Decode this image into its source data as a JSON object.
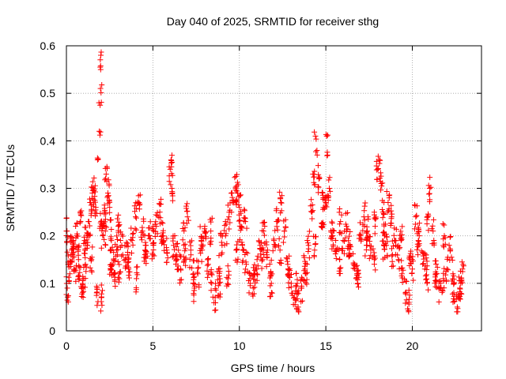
{
  "chart_data": {
    "type": "scatter",
    "title": "Day 040 of 2025, SRMTID for receiver sthg",
    "xlabel": "GPS time / hours",
    "ylabel": "SRMTID / TECUs",
    "xlim": [
      0,
      24
    ],
    "ylim": [
      0,
      0.6
    ],
    "xticks": [
      0,
      5,
      10,
      15,
      20
    ],
    "xtick_labels": [
      "0",
      "5",
      "10",
      "15",
      "20"
    ],
    "yticks": [
      0,
      0.1,
      0.2,
      0.3,
      0.4,
      0.5,
      0.6
    ],
    "ytick_labels": [
      "0",
      "0.1",
      "0.2",
      "0.3",
      "0.4",
      "0.5",
      "0.6"
    ],
    "grid": true,
    "marker": "+",
    "series": [
      {
        "name": "SRMTID",
        "color": "#ff0000",
        "x": [
          0.0,
          0.1,
          0.2,
          0.3,
          0.4,
          0.5,
          0.6,
          0.7,
          0.8,
          0.9,
          1.0,
          1.1,
          1.2,
          1.3,
          1.4,
          1.5,
          1.6,
          1.7,
          1.8,
          1.9,
          1.95,
          1.97,
          1.98,
          1.99,
          2.0,
          2.02,
          2.1,
          2.2,
          2.3,
          2.4,
          2.5,
          2.6,
          2.7,
          2.8,
          2.9,
          3.0,
          3.2,
          3.4,
          3.6,
          3.8,
          4.0,
          4.2,
          4.4,
          4.6,
          4.8,
          5.0,
          5.2,
          5.4,
          5.6,
          5.8,
          6.0,
          6.05,
          6.1,
          6.2,
          6.4,
          6.6,
          6.8,
          7.0,
          7.2,
          7.4,
          7.6,
          7.8,
          8.0,
          8.2,
          8.4,
          8.6,
          8.8,
          9.0,
          9.2,
          9.4,
          9.6,
          9.8,
          9.9,
          10.0,
          10.1,
          10.2,
          10.4,
          10.6,
          10.8,
          11.0,
          11.2,
          11.4,
          11.6,
          11.8,
          12.0,
          12.2,
          12.4,
          12.6,
          12.8,
          13.0,
          13.2,
          13.4,
          13.6,
          13.8,
          14.0,
          14.2,
          14.3,
          14.4,
          14.5,
          14.6,
          14.8,
          15.0,
          15.05,
          15.1,
          15.2,
          15.4,
          15.6,
          15.8,
          16.0,
          16.2,
          16.4,
          16.6,
          16.8,
          17.0,
          17.2,
          17.4,
          17.6,
          17.8,
          18.0,
          18.1,
          18.2,
          18.3,
          18.4,
          18.5,
          18.6,
          18.8,
          19.0,
          19.2,
          19.4,
          19.6,
          19.8,
          20.0,
          20.2,
          20.4,
          20.6,
          20.8,
          20.9,
          21.0,
          21.2,
          21.4,
          21.6,
          21.8,
          22.0,
          22.2,
          22.4,
          22.6,
          22.8,
          22.9,
          0.05,
          0.35,
          0.75,
          1.05,
          1.45,
          1.75,
          2.25,
          2.55,
          3.05,
          3.55,
          4.05,
          4.55,
          5.05,
          5.55,
          6.35,
          6.85,
          7.35,
          7.85,
          8.35,
          8.85,
          9.35,
          9.85,
          10.35,
          10.85,
          11.35,
          11.85,
          12.35,
          12.85,
          13.35,
          13.85,
          14.35,
          14.85,
          15.35,
          15.85,
          16.35,
          16.85,
          17.35,
          17.85,
          18.35,
          18.85,
          19.35,
          19.85,
          20.35,
          20.85,
          21.35,
          21.85,
          22.35,
          22.75
        ],
        "y": [
          0.21,
          0.14,
          0.12,
          0.17,
          0.19,
          0.13,
          0.2,
          0.15,
          0.25,
          0.09,
          0.11,
          0.14,
          0.18,
          0.23,
          0.27,
          0.29,
          0.3,
          0.26,
          0.36,
          0.42,
          0.475,
          0.51,
          0.55,
          0.58,
          0.23,
          0.07,
          0.2,
          0.25,
          0.33,
          0.29,
          0.26,
          0.19,
          0.14,
          0.12,
          0.17,
          0.22,
          0.18,
          0.15,
          0.13,
          0.19,
          0.24,
          0.27,
          0.21,
          0.18,
          0.2,
          0.16,
          0.22,
          0.25,
          0.19,
          0.17,
          0.34,
          0.36,
          0.3,
          0.18,
          0.15,
          0.13,
          0.21,
          0.24,
          0.16,
          0.09,
          0.12,
          0.19,
          0.22,
          0.14,
          0.1,
          0.07,
          0.13,
          0.18,
          0.2,
          0.24,
          0.27,
          0.3,
          0.29,
          0.26,
          0.22,
          0.17,
          0.14,
          0.11,
          0.09,
          0.13,
          0.18,
          0.21,
          0.16,
          0.12,
          0.19,
          0.23,
          0.27,
          0.21,
          0.14,
          0.1,
          0.07,
          0.05,
          0.09,
          0.13,
          0.18,
          0.25,
          0.33,
          0.41,
          0.37,
          0.32,
          0.22,
          0.27,
          0.41,
          0.37,
          0.3,
          0.2,
          0.17,
          0.15,
          0.19,
          0.22,
          0.18,
          0.14,
          0.12,
          0.2,
          0.24,
          0.21,
          0.17,
          0.15,
          0.34,
          0.36,
          0.31,
          0.25,
          0.2,
          0.18,
          0.27,
          0.24,
          0.19,
          0.15,
          0.12,
          0.08,
          0.06,
          0.13,
          0.24,
          0.2,
          0.14,
          0.16,
          0.24,
          0.3,
          0.21,
          0.12,
          0.09,
          0.11,
          0.13,
          0.17,
          0.08,
          0.05,
          0.1,
          0.13,
          0.09,
          0.16,
          0.11,
          0.19,
          0.15,
          0.08,
          0.21,
          0.13,
          0.12,
          0.16,
          0.11,
          0.17,
          0.21,
          0.2,
          0.16,
          0.15,
          0.12,
          0.17,
          0.21,
          0.1,
          0.11,
          0.17,
          0.23,
          0.12,
          0.15,
          0.1,
          0.17,
          0.12,
          0.1,
          0.12,
          0.17,
          0.28,
          0.2,
          0.23,
          0.16,
          0.1,
          0.18,
          0.22,
          0.18,
          0.16,
          0.19,
          0.15,
          0.19,
          0.1,
          0.12,
          0.2,
          0.12,
          0.09
        ]
      }
    ]
  }
}
